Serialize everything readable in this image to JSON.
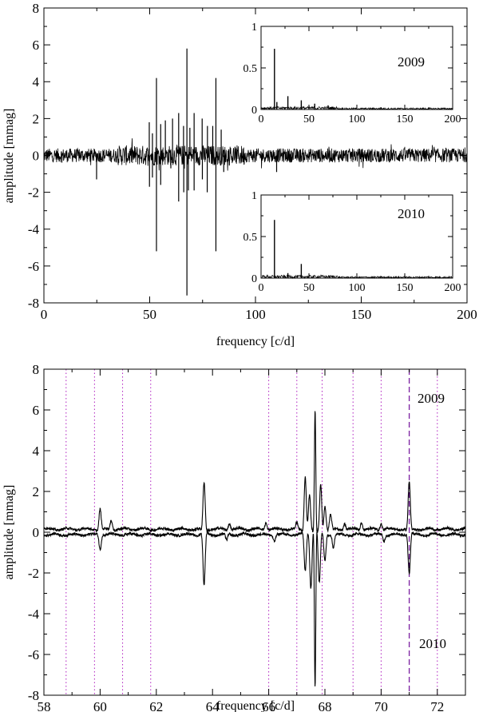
{
  "chart_data": [
    {
      "id": "top",
      "type": "line",
      "xlabel": "frequency [c/d]",
      "ylabel": "amplitude [mmag]",
      "xlim": [
        0,
        200
      ],
      "ylim": [
        -8,
        8
      ],
      "xticks": [
        "0",
        "50",
        "100",
        "150",
        "200"
      ],
      "yticks": [
        "-8",
        "-6",
        "-4",
        "-2",
        "0",
        "2",
        "4",
        "6",
        "8"
      ],
      "series": [
        {
          "sign": 1,
          "peaks": [
            [
              49.8,
              1.8
            ],
            [
              51.3,
              1.2
            ],
            [
              53.2,
              4.2
            ],
            [
              55.2,
              1.7
            ],
            [
              57.4,
              1.9
            ],
            [
              60.8,
              2.0
            ],
            [
              63.7,
              2.3
            ],
            [
              66.0,
              1.6
            ],
            [
              67.6,
              5.8
            ],
            [
              69.0,
              1.5
            ],
            [
              71.0,
              2.3
            ],
            [
              74.8,
              2.0
            ],
            [
              77.3,
              1.6
            ],
            [
              79.8,
              1.6
            ],
            [
              81.3,
              4.2
            ],
            [
              83.8,
              1.4
            ]
          ]
        },
        {
          "sign": -1,
          "peaks": [
            [
              24.9,
              -1.3
            ],
            [
              49.9,
              -1.7
            ],
            [
              51.3,
              -1.2
            ],
            [
              53.2,
              -5.2
            ],
            [
              55.2,
              -1.6
            ],
            [
              60.0,
              -0.7
            ],
            [
              63.7,
              -2.5
            ],
            [
              66.1,
              -2.0
            ],
            [
              67.6,
              -7.6
            ],
            [
              68.3,
              -1.9
            ],
            [
              71.0,
              -1.9
            ],
            [
              74.9,
              -1.3
            ],
            [
              77.2,
              -2.0
            ],
            [
              81.3,
              -5.2
            ],
            [
              85.0,
              -0.9
            ],
            [
              110.0,
              -0.9
            ]
          ]
        }
      ],
      "insets": [
        {
          "id": "inset-2009",
          "label": "2009",
          "xlim": [
            0,
            200
          ],
          "ylim": [
            0,
            1
          ],
          "xticks": [
            "0",
            "50",
            "100",
            "150",
            "200"
          ],
          "yticks": [
            "0",
            "0.5",
            "1"
          ],
          "peaks": [
            [
              14.0,
              0.73
            ],
            [
              16.5,
              0.09
            ],
            [
              28.0,
              0.16
            ],
            [
              42.0,
              0.11
            ],
            [
              56.0,
              0.07
            ],
            [
              70.0,
              0.05
            ]
          ]
        },
        {
          "id": "inset-2010",
          "label": "2010",
          "xlim": [
            0,
            200
          ],
          "ylim": [
            0,
            1
          ],
          "xticks": [
            "0",
            "50",
            "100",
            "150",
            "200"
          ],
          "yticks": [
            "0",
            "0.5",
            "1"
          ],
          "peaks": [
            [
              14.0,
              0.7
            ],
            [
              42.0,
              0.17
            ],
            [
              28.0,
              0.06
            ]
          ]
        }
      ]
    },
    {
      "id": "bottom",
      "type": "line",
      "xlabel": "frequency [c/d]",
      "ylabel": "amplitude [mmag]",
      "xlim": [
        58,
        73
      ],
      "ylim": [
        -8,
        8
      ],
      "xticks": [
        "58",
        "60",
        "62",
        "64",
        "66",
        "68",
        "70",
        "72"
      ],
      "yticks": [
        "-8",
        "-6",
        "-4",
        "-2",
        "0",
        "2",
        "4",
        "6",
        "8"
      ],
      "labels": {
        "upper": "2009",
        "lower": "2010"
      },
      "dotted_lines": [
        58.79,
        59.8,
        60.8,
        61.8,
        66.0,
        67.0,
        67.9,
        69.0,
        70.0,
        72.0,
        73.0
      ],
      "dashed_lines": [
        71.0
      ],
      "series": [
        {
          "sign": 1,
          "peaks": [
            [
              60.0,
              1.0
            ],
            [
              60.4,
              0.45
            ],
            [
              63.7,
              2.3
            ],
            [
              64.6,
              0.3
            ],
            [
              65.9,
              0.35
            ],
            [
              67.0,
              0.3
            ],
            [
              67.3,
              2.6
            ],
            [
              67.45,
              1.7
            ],
            [
              67.65,
              5.8
            ],
            [
              67.85,
              2.2
            ],
            [
              68.0,
              1.2
            ],
            [
              68.2,
              0.7
            ],
            [
              68.7,
              0.3
            ],
            [
              69.3,
              0.35
            ],
            [
              70.0,
              0.3
            ],
            [
              71.0,
              2.3
            ]
          ]
        },
        {
          "sign": -1,
          "peaks": [
            [
              60.0,
              -0.7
            ],
            [
              63.7,
              -2.5
            ],
            [
              64.5,
              -0.3
            ],
            [
              66.2,
              -0.3
            ],
            [
              67.3,
              -1.8
            ],
            [
              67.5,
              -2.6
            ],
            [
              67.65,
              -7.6
            ],
            [
              67.8,
              -2.4
            ],
            [
              68.0,
              -1.3
            ],
            [
              68.3,
              -0.6
            ],
            [
              70.1,
              -0.3
            ],
            [
              71.0,
              -1.9
            ]
          ]
        }
      ]
    }
  ]
}
